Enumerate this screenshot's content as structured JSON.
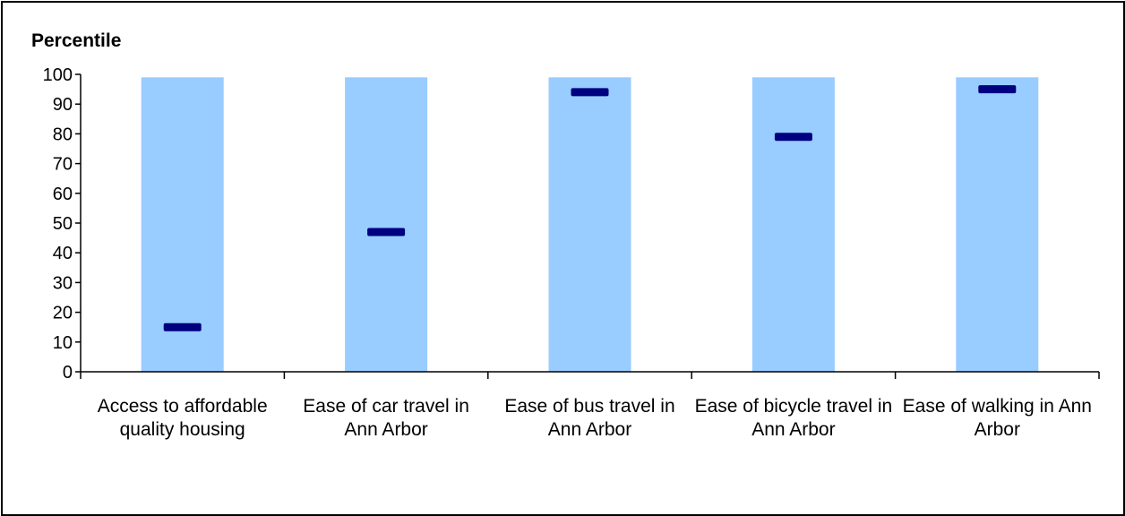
{
  "chart_data": {
    "type": "bar",
    "title": "Percentile",
    "xlabel": "",
    "ylabel": "",
    "ylim": [
      0,
      100
    ],
    "yticks": [
      0,
      10,
      20,
      30,
      40,
      50,
      60,
      70,
      80,
      90,
      100
    ],
    "grid": false,
    "categories": [
      "Access to affordable quality housing",
      "Ease of car travel in Ann Arbor",
      "Ease of bus travel in Ann Arbor",
      "Ease of bicycle travel in Ann Arbor",
      "Ease of walking in Ann Arbor"
    ],
    "series": [
      {
        "values": [
          99,
          99,
          99,
          99,
          99
        ],
        "color": "#99ccff"
      },
      {
        "values": [
          15,
          47,
          94,
          79,
          95
        ],
        "color": "#000080"
      }
    ]
  }
}
